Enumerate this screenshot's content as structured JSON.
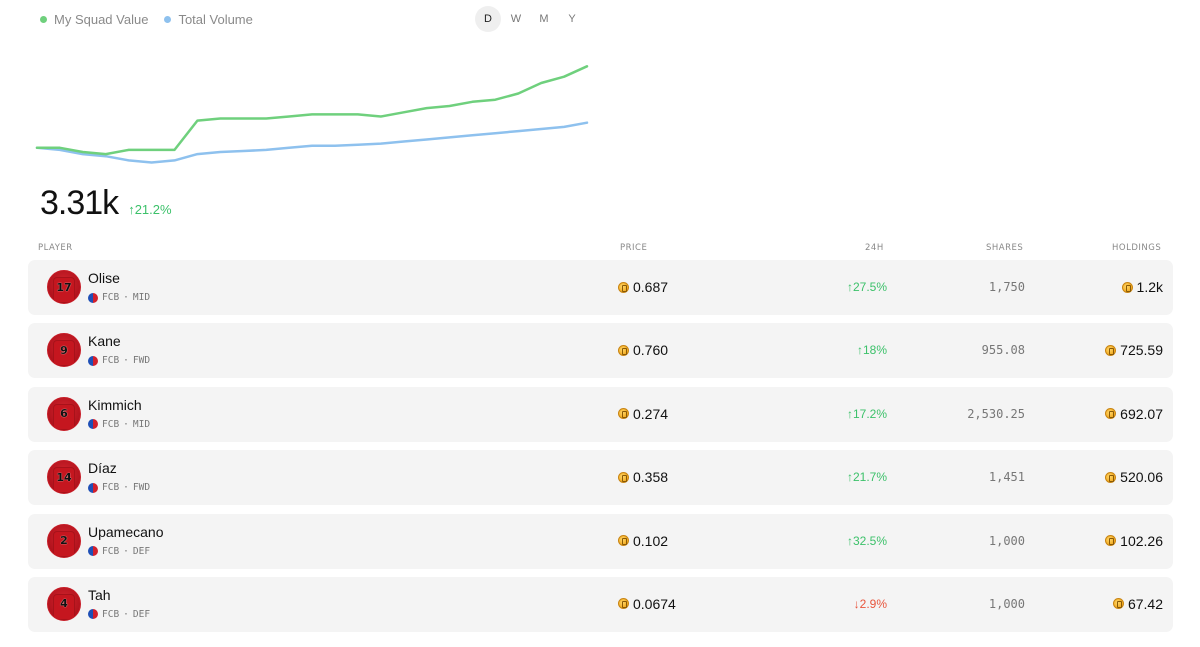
{
  "legend": {
    "squad": {
      "label": "My Squad Value",
      "color": "#6fd07d"
    },
    "volume": {
      "label": "Total Volume",
      "color": "#8ec1ee"
    }
  },
  "ranges": [
    {
      "label": "D",
      "active": true
    },
    {
      "label": "W",
      "active": false
    },
    {
      "label": "M",
      "active": false
    },
    {
      "label": "Y",
      "active": false
    }
  ],
  "summary": {
    "value": "3.31k",
    "change": "↑21.2%"
  },
  "chart_data": {
    "type": "line",
    "title": "",
    "xlabel": "",
    "ylabel": "",
    "grid": false,
    "legend_position": "top-left",
    "x": [
      1,
      2,
      3,
      4,
      5,
      6,
      7,
      8,
      9,
      10,
      11,
      12,
      13,
      14,
      15,
      16,
      17,
      18,
      19,
      20,
      21,
      22,
      23,
      24,
      25
    ],
    "series": [
      {
        "name": "My Squad Value",
        "color": "#6fd07d",
        "values": [
          2.73,
          2.73,
          2.71,
          2.7,
          2.72,
          2.72,
          2.72,
          2.86,
          2.87,
          2.87,
          2.87,
          2.88,
          2.89,
          2.89,
          2.89,
          2.88,
          2.9,
          2.92,
          2.93,
          2.95,
          2.96,
          2.99,
          3.04,
          3.07,
          3.12
        ]
      },
      {
        "name": "Total Volume",
        "color": "#8ec1ee",
        "values": [
          2.73,
          2.72,
          2.7,
          2.69,
          2.67,
          2.66,
          2.67,
          2.7,
          2.71,
          2.715,
          2.72,
          2.73,
          2.74,
          2.74,
          2.745,
          2.75,
          2.76,
          2.77,
          2.78,
          2.79,
          2.8,
          2.81,
          2.82,
          2.83,
          2.85
        ]
      }
    ],
    "ylim": [
      2.6,
      3.15
    ]
  },
  "table": {
    "headers": {
      "player": "PLAYER",
      "price": "PRICE",
      "change": "24H",
      "shares": "SHARES",
      "holdings": "HOLDINGS"
    },
    "rows": [
      {
        "number": "17",
        "name": "Olise",
        "club": "FCB",
        "pos": "MID",
        "price": "0.687",
        "change": "↑27.5%",
        "dir": "up",
        "shares": "1,750",
        "holdings": "1.2k"
      },
      {
        "number": "9",
        "name": "Kane",
        "club": "FCB",
        "pos": "FWD",
        "price": "0.760",
        "change": "↑18%",
        "dir": "up",
        "shares": "955.08",
        "holdings": "725.59"
      },
      {
        "number": "6",
        "name": "Kimmich",
        "club": "FCB",
        "pos": "MID",
        "price": "0.274",
        "change": "↑17.2%",
        "dir": "up",
        "shares": "2,530.25",
        "holdings": "692.07"
      },
      {
        "number": "14",
        "name": "Díaz",
        "club": "FCB",
        "pos": "FWD",
        "price": "0.358",
        "change": "↑21.7%",
        "dir": "up",
        "shares": "1,451",
        "holdings": "520.06"
      },
      {
        "number": "2",
        "name": "Upamecano",
        "club": "FCB",
        "pos": "DEF",
        "price": "0.102",
        "change": "↑32.5%",
        "dir": "up",
        "shares": "1,000",
        "holdings": "102.26"
      },
      {
        "number": "4",
        "name": "Tah",
        "club": "FCB",
        "pos": "DEF",
        "price": "0.0674",
        "change": "↓2.9%",
        "dir": "down",
        "shares": "1,000",
        "holdings": "67.42"
      }
    ]
  }
}
